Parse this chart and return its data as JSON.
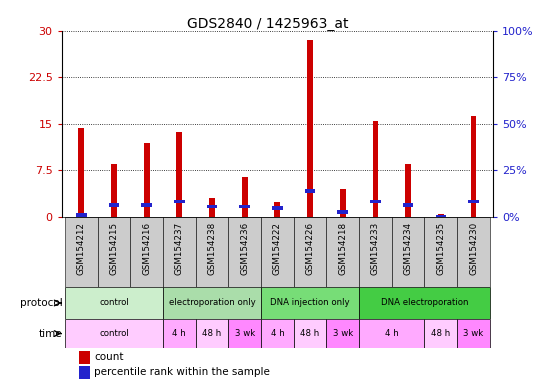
{
  "title": "GDS2840 / 1425963_at",
  "samples": [
    "GSM154212",
    "GSM154215",
    "GSM154216",
    "GSM154237",
    "GSM154238",
    "GSM154236",
    "GSM154222",
    "GSM154226",
    "GSM154218",
    "GSM154233",
    "GSM154234",
    "GSM154235",
    "GSM154230"
  ],
  "count_values": [
    14.3,
    8.5,
    12.0,
    13.7,
    3.0,
    6.5,
    2.5,
    28.5,
    4.5,
    15.5,
    8.5,
    0.5,
    16.2
  ],
  "percentile_values_scaled": [
    0.3,
    2.0,
    2.0,
    2.5,
    1.7,
    1.7,
    1.5,
    4.2,
    0.8,
    2.5,
    1.9,
    0.1,
    2.5
  ],
  "count_color": "#cc0000",
  "percentile_color": "#2222cc",
  "ylim_left": [
    0,
    30
  ],
  "ylim_right": [
    0,
    100
  ],
  "yticks_left": [
    0,
    7.5,
    15,
    22.5,
    30
  ],
  "yticks_right": [
    0,
    25,
    50,
    75,
    100
  ],
  "bar_width": 0.18,
  "background_color": "#ffffff",
  "plot_bg_color": "#ffffff",
  "protocols": [
    {
      "label": "control",
      "start": 0,
      "end": 3,
      "color": "#cceecc"
    },
    {
      "label": "electroporation only",
      "start": 3,
      "end": 6,
      "color": "#aaddaa"
    },
    {
      "label": "DNA injection only",
      "start": 6,
      "end": 9,
      "color": "#77dd77"
    },
    {
      "label": "DNA electroporation",
      "start": 9,
      "end": 13,
      "color": "#44cc44"
    }
  ],
  "times": [
    {
      "label": "control",
      "start": 0,
      "end": 3,
      "color": "#ffccff"
    },
    {
      "label": "4 h",
      "start": 3,
      "end": 4,
      "color": "#ffaaff"
    },
    {
      "label": "48 h",
      "start": 4,
      "end": 5,
      "color": "#ffccff"
    },
    {
      "label": "3 wk",
      "start": 5,
      "end": 6,
      "color": "#ff88ff"
    },
    {
      "label": "4 h",
      "start": 6,
      "end": 7,
      "color": "#ffaaff"
    },
    {
      "label": "48 h",
      "start": 7,
      "end": 8,
      "color": "#ffccff"
    },
    {
      "label": "3 wk",
      "start": 8,
      "end": 9,
      "color": "#ff88ff"
    },
    {
      "label": "4 h",
      "start": 9,
      "end": 11,
      "color": "#ffaaff"
    },
    {
      "label": "48 h",
      "start": 11,
      "end": 12,
      "color": "#ffccff"
    },
    {
      "label": "3 wk",
      "start": 12,
      "end": 13,
      "color": "#ff88ff"
    }
  ],
  "tick_fontsize": 7,
  "title_fontsize": 10,
  "label_fontsize": 8,
  "gray_box_color": "#cccccc"
}
